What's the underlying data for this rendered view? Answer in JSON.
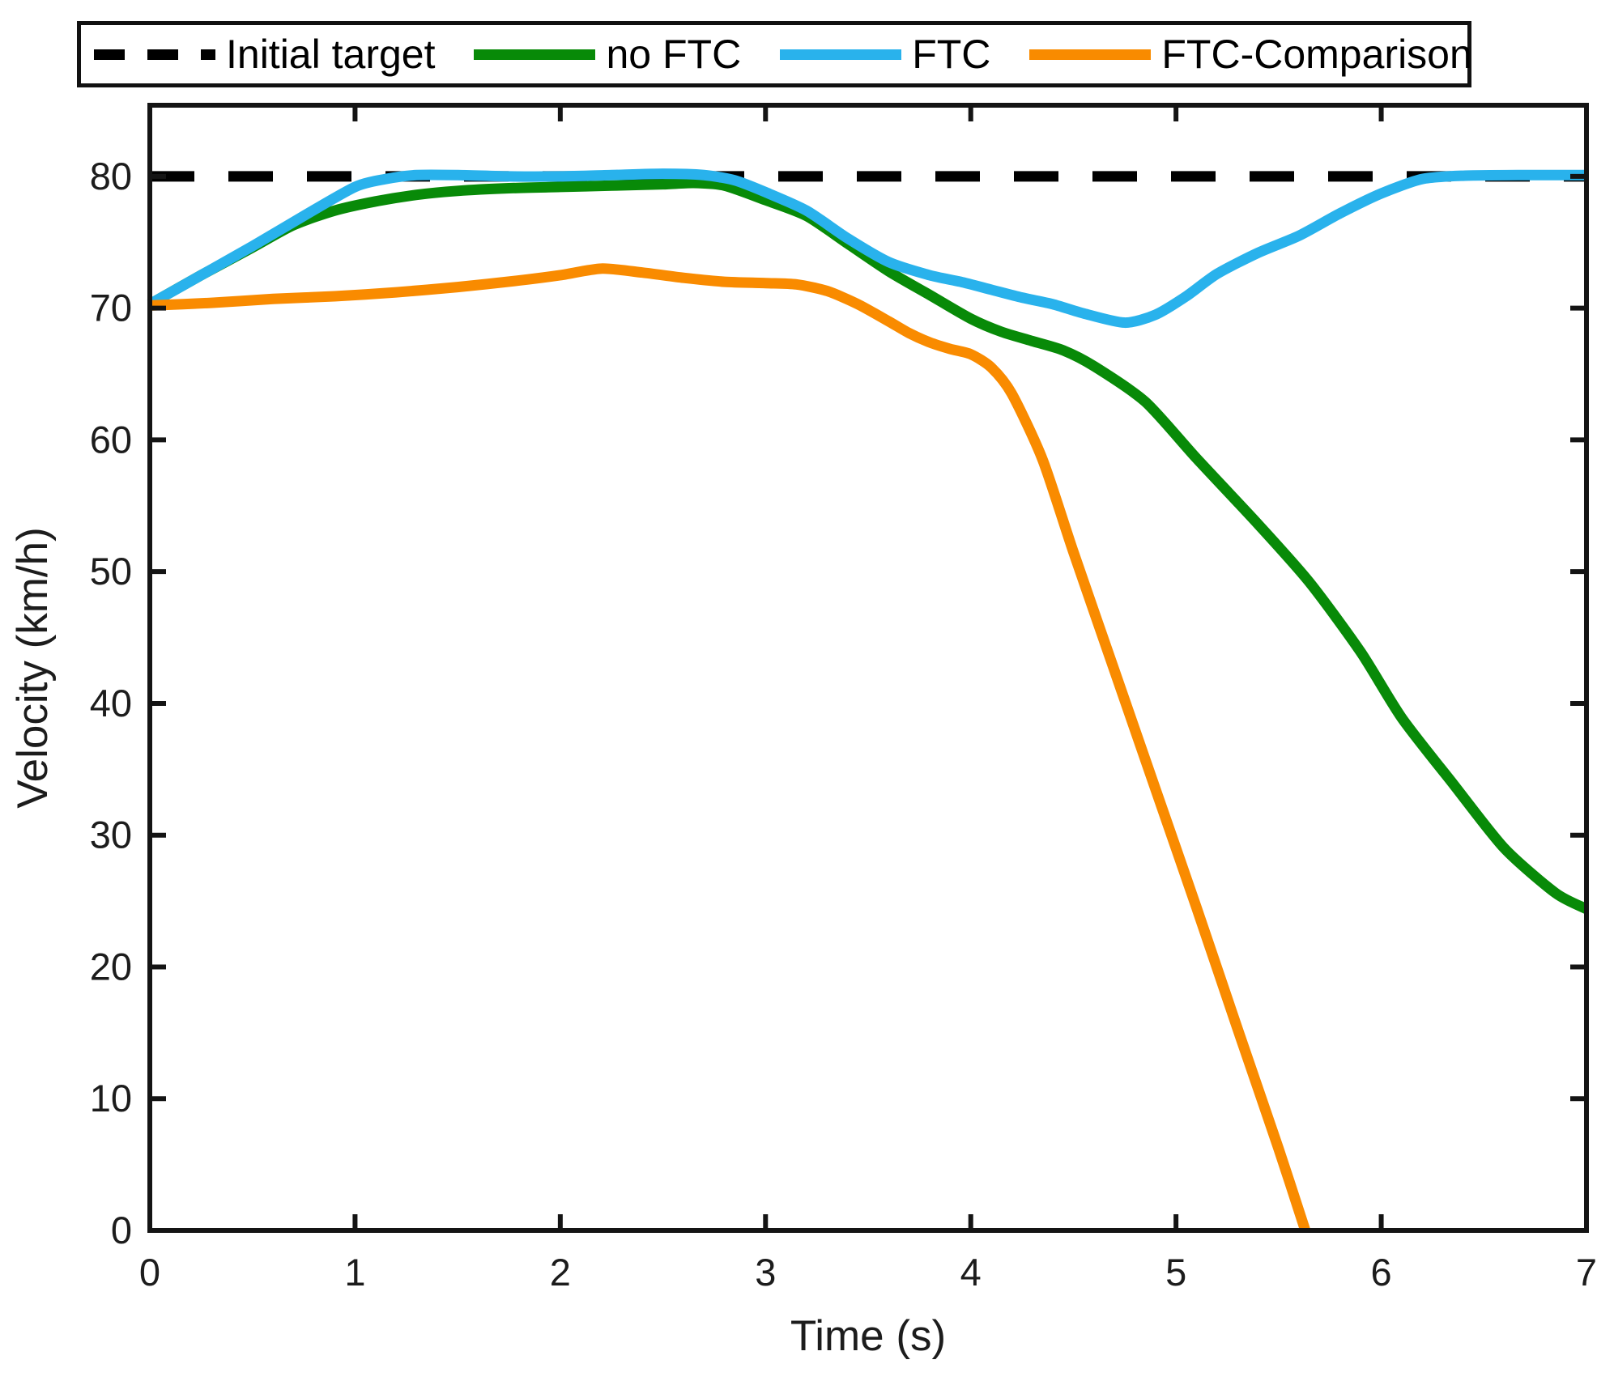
{
  "legend": {
    "items": [
      {
        "label": "Initial target",
        "color": "#000000",
        "style": "dashed"
      },
      {
        "label": "no FTC",
        "color": "#088A08",
        "style": "solid"
      },
      {
        "label": "FTC",
        "color": "#29B2EC",
        "style": "solid"
      },
      {
        "label": "FTC-Comparison",
        "color": "#F98B00",
        "style": "solid"
      }
    ]
  },
  "chart_data": {
    "type": "line",
    "title": "",
    "xlabel": "Time (s)",
    "ylabel": "Velocity (km/h)",
    "xlim": [
      0,
      7
    ],
    "ylim": [
      0,
      85.4
    ],
    "xticks": [
      0,
      1,
      2,
      3,
      4,
      5,
      6,
      7
    ],
    "yticks": [
      0,
      10,
      20,
      30,
      40,
      50,
      60,
      70,
      80
    ],
    "grid": false,
    "legend_position": "top-outside",
    "box": true,
    "series": [
      {
        "name": "Initial target",
        "color": "#000000",
        "style": "dashed",
        "width": 13,
        "x": [
          0,
          7
        ],
        "y": [
          80,
          80
        ]
      },
      {
        "name": "no FTC",
        "color": "#088A08",
        "style": "solid",
        "width": 13,
        "x": [
          0,
          0.25,
          0.5,
          0.7,
          0.9,
          1.1,
          1.3,
          1.5,
          1.75,
          2,
          2.25,
          2.5,
          2.65,
          2.8,
          3,
          3.2,
          3.4,
          3.6,
          3.8,
          4,
          4.15,
          4.3,
          4.45,
          4.6,
          4.85,
          5.1,
          5.4,
          5.65,
          5.9,
          6.1,
          6.35,
          6.6,
          6.85,
          7
        ],
        "y": [
          70.3,
          72.5,
          74.6,
          76.3,
          77.4,
          78.1,
          78.6,
          78.9,
          79.1,
          79.2,
          79.3,
          79.4,
          79.5,
          79.3,
          78.2,
          77,
          74.9,
          72.8,
          71,
          69.2,
          68.2,
          67.5,
          66.8,
          65.6,
          62.9,
          58.6,
          53.6,
          49.2,
          43.9,
          38.9,
          33.9,
          29,
          25.6,
          24.4
        ]
      },
      {
        "name": "FTC",
        "color": "#29B2EC",
        "style": "solid",
        "width": 13,
        "x": [
          0,
          0.25,
          0.5,
          0.75,
          1,
          1.15,
          1.3,
          1.5,
          1.75,
          2,
          2.25,
          2.5,
          2.7,
          2.85,
          3,
          3.2,
          3.4,
          3.6,
          3.8,
          3.95,
          4.1,
          4.25,
          4.4,
          4.55,
          4.75,
          4.9,
          5.05,
          5.2,
          5.4,
          5.6,
          5.8,
          6,
          6.2,
          6.4,
          6.7,
          7
        ],
        "y": [
          70.3,
          72.5,
          74.7,
          77,
          79.2,
          79.8,
          80.1,
          80.1,
          80,
          80,
          80.1,
          80.2,
          80.1,
          79.7,
          78.8,
          77.4,
          75.3,
          73.5,
          72.5,
          72,
          71.4,
          70.8,
          70.3,
          69.6,
          68.9,
          69.5,
          70.9,
          72.6,
          74.2,
          75.5,
          77.2,
          78.7,
          79.8,
          80.05,
          80.1,
          80.1
        ]
      },
      {
        "name": "FTC-Comparison",
        "color": "#F98B00",
        "style": "solid",
        "width": 13,
        "x": [
          0,
          0.3,
          0.6,
          0.9,
          1.2,
          1.5,
          1.8,
          2,
          2.2,
          2.4,
          2.6,
          2.8,
          3,
          3.15,
          3.3,
          3.45,
          3.6,
          3.7,
          3.8,
          3.9,
          4,
          4.1,
          4.2,
          4.35,
          4.5,
          4.7,
          4.9,
          5.1,
          5.3,
          5.5,
          5.63
        ],
        "y": [
          70.2,
          70.4,
          70.7,
          70.9,
          71.2,
          71.6,
          72.1,
          72.5,
          73,
          72.7,
          72.3,
          72,
          71.9,
          71.8,
          71.3,
          70.3,
          69,
          68.1,
          67.4,
          66.9,
          66.5,
          65.5,
          63.5,
          58.5,
          51.5,
          42.5,
          33.5,
          24.5,
          15.3,
          6.2,
          0
        ]
      }
    ]
  }
}
